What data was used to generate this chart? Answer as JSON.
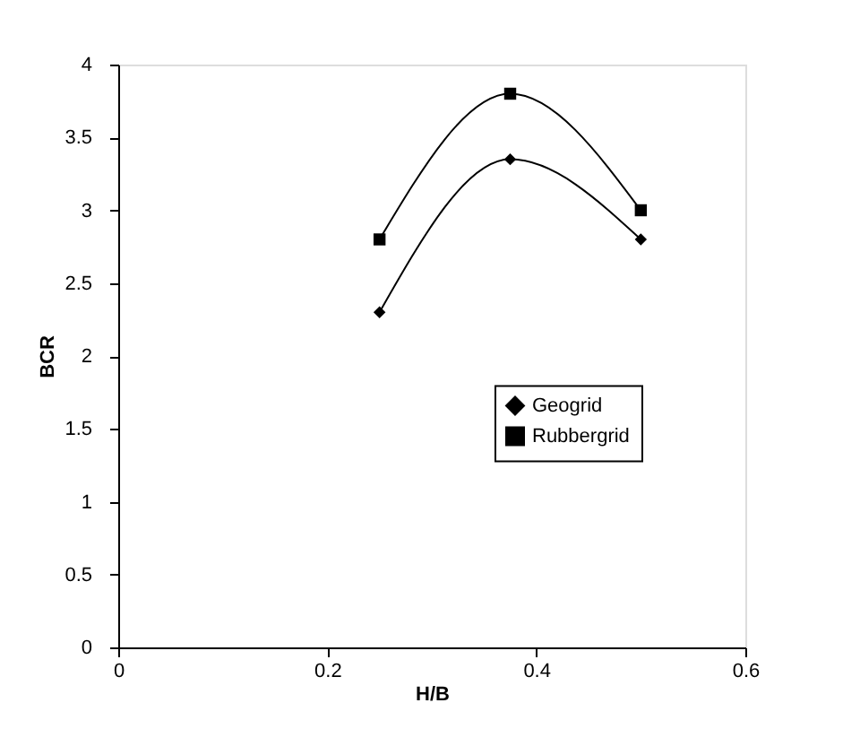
{
  "chart_data": {
    "type": "line",
    "xlabel": "H/B",
    "ylabel": "BCR",
    "xlim": [
      0,
      0.6
    ],
    "xticks": [
      0,
      0.2,
      0.4,
      0.6
    ],
    "ylim": [
      0,
      4
    ],
    "yticks": [
      0,
      0.5,
      1,
      1.5,
      2,
      2.5,
      3,
      3.5,
      4
    ],
    "grid": false,
    "legend": "bottom right",
    "series": [
      {
        "name": "Geogrid",
        "color": "#000000",
        "marker": "diamond",
        "x": [
          0.25,
          0.375,
          0.5
        ],
        "values": [
          2.3,
          3.35,
          2.8
        ]
      },
      {
        "name": "Rubbergrid",
        "color": "#000000",
        "marker": "square",
        "x": [
          0.25,
          0.375,
          0.5
        ],
        "values": [
          2.8,
          3.8,
          3.0
        ]
      }
    ]
  }
}
